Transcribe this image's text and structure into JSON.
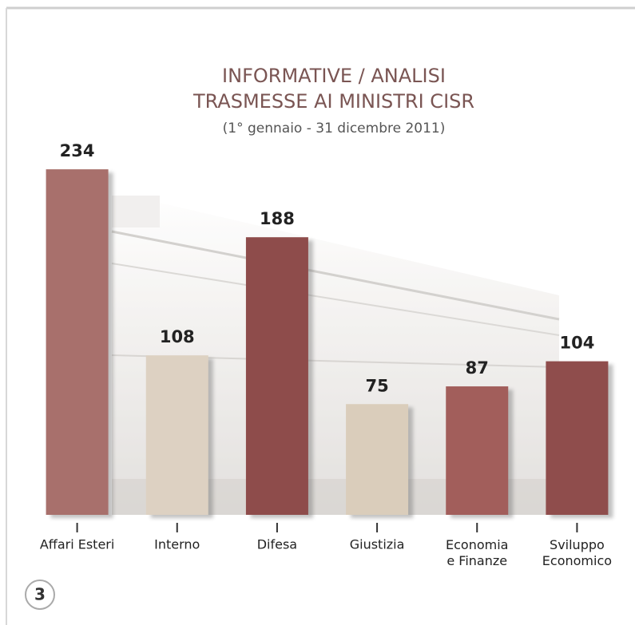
{
  "chart_data": {
    "type": "bar",
    "title": [
      "INFORMATIVE / ANALISI",
      "TRASMESSE AI MINISTRI CISR"
    ],
    "subtitle": "(1° gennaio - 31 dicembre 2011)",
    "categories": [
      "Affari Esteri",
      "Interno",
      "Difesa",
      "Giustizia",
      "Economia\ne Finanze",
      "Sviluppo\nEconomico"
    ],
    "values": [
      234,
      108,
      188,
      75,
      87,
      104
    ],
    "colors": [
      "#a8706c",
      "#ddd1c2",
      "#8e4c4b",
      "#dacdbb",
      "#a25e5b",
      "#8f4d4c"
    ]
  },
  "page_number": "3"
}
